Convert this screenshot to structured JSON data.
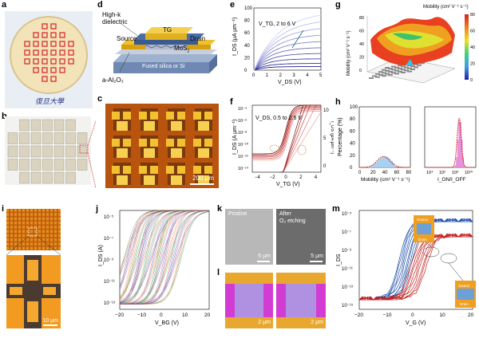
{
  "labels": {
    "a": "a",
    "b": "b",
    "c": "c",
    "d": "d",
    "e": "e",
    "f": "f",
    "g": "g",
    "h": "h",
    "i": "i",
    "j": "j",
    "k": "k",
    "l": "l",
    "m": "m"
  },
  "panel_a": {
    "caption": "復旦大學"
  },
  "panel_c": {
    "scalebar": "200 μm"
  },
  "panel_d": {
    "tg": "TG",
    "source": "Source",
    "drain": "Drain",
    "mos2": "MoS",
    "highk_1": "High-k",
    "highk_2": "dielectric",
    "substrate": "Fused silica or Si",
    "al2o3": "a-Al₂O₃"
  },
  "panel_e": {
    "ylabel": "I_DS (μA μm⁻¹)",
    "xlabel": "V_DS (V)",
    "annotation": "V_TG, 2 to 6 V",
    "xticks": [
      "0",
      "1",
      "2",
      "3",
      "4",
      "5"
    ],
    "yticks": [
      "0",
      "20",
      "40",
      "60",
      "80",
      "100"
    ]
  },
  "panel_f": {
    "ylabel": "I_DS (A μm⁻¹)",
    "ylabel2": "I_DS (μA μm⁻¹)",
    "xlabel": "V_TG (V)",
    "annotation": "V_DS, 0.5 to 2.5 V",
    "xticks": [
      "−4",
      "−2",
      "0",
      "2",
      "4"
    ],
    "yticks": [
      "10⁻⁴",
      "10⁻⁶",
      "10⁻⁸",
      "10⁻¹⁰",
      "10⁻¹²",
      "10⁻¹⁴"
    ],
    "y2ticks": [
      "10",
      "5",
      "0"
    ]
  },
  "panel_g": {
    "colorbar_title": "Mobility (cm² V⁻¹ s⁻¹)",
    "zlabel": "Mobility (cm² V⁻¹ s⁻¹)",
    "colorbar_ticks": [
      "0",
      "20",
      "40",
      "60",
      "80"
    ],
    "zticks": [
      "80",
      "60",
      "40",
      "20",
      "0"
    ]
  },
  "panel_h": {
    "ylabel": "Percentage (%)",
    "xlabel_left": "Mobility (cm² V⁻¹ s⁻¹)",
    "xlabel_right": "I_ON/I_OFF",
    "yticks": [
      "0",
      "20",
      "40",
      "60",
      "80",
      "100"
    ],
    "xticks_left": [
      "0",
      "20",
      "40",
      "60",
      "80"
    ],
    "xticks_right": [
      "10⁴",
      "10⁶",
      "10⁸",
      "10¹⁰"
    ]
  },
  "panel_i": {
    "scalebar": "10 μm"
  },
  "panel_j": {
    "ylabel": "I_DS (A)",
    "xlabel": "V_BG (V)",
    "xticks": [
      "−20",
      "−10",
      "0",
      "10",
      "20"
    ],
    "yticks": [
      "10⁻⁵",
      "10⁻⁷",
      "10⁻⁹",
      "10⁻¹¹",
      "10⁻¹³"
    ]
  },
  "panel_k": {
    "left_title": "Pristine",
    "right_title_1": "After",
    "right_title_2": "O₂ etching",
    "scalebar": "5 μm"
  },
  "panel_l": {
    "scalebar": "2 μm"
  },
  "panel_m": {
    "ylabel": "I_DS",
    "xlabel": "V_G (V)",
    "xticks": [
      "−20",
      "−10",
      "0",
      "10",
      "20"
    ],
    "yticks": [
      "10⁻⁵",
      "10⁻⁷",
      "10⁻⁹",
      "10⁻¹¹",
      "10⁻¹³",
      "10⁻¹⁵"
    ],
    "inset_source": "Source",
    "inset_drain": "Drain"
  },
  "colors": {
    "gold": "#e8a820",
    "orange": "#d2691e",
    "blue": "#1f4fa8",
    "red": "#c42020",
    "magenta": "#d23cd2"
  }
}
